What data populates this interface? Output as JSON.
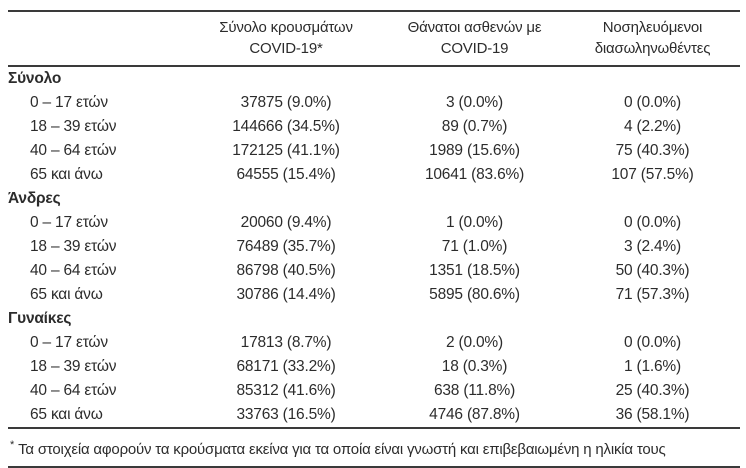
{
  "colors": {
    "text": "#2c2c2c",
    "border": "#3a3a3a",
    "background": "#ffffff"
  },
  "chart_data": {
    "type": "table",
    "header": {
      "col2": {
        "line1": "Σύνολο κρουσμάτων",
        "line2": "COVID-19*"
      },
      "col3": {
        "line1": "Θάνατοι ασθενών με",
        "line2": "COVID-19"
      },
      "col4": {
        "line1": "Νοσηλευόμενοι",
        "line2": "διασωληνωθέντες"
      }
    },
    "sections": [
      {
        "title": "Σύνολο",
        "rows": [
          {
            "age": "0 – 17 ετών",
            "cases": "37875 (9.0%)",
            "deaths": "3 (0.0%)",
            "intubated": "0 (0.0%)"
          },
          {
            "age": "18 – 39 ετών",
            "cases": "144666 (34.5%)",
            "deaths": "89 (0.7%)",
            "intubated": "4 (2.2%)"
          },
          {
            "age": "40 – 64 ετών",
            "cases": "172125 (41.1%)",
            "deaths": "1989 (15.6%)",
            "intubated": "75 (40.3%)"
          },
          {
            "age": "65 και άνω",
            "cases": "64555 (15.4%)",
            "deaths": "10641 (83.6%)",
            "intubated": "107 (57.5%)"
          }
        ]
      },
      {
        "title": "Άνδρες",
        "rows": [
          {
            "age": "0 – 17 ετών",
            "cases": "20060 (9.4%)",
            "deaths": "1 (0.0%)",
            "intubated": "0 (0.0%)"
          },
          {
            "age": "18 – 39 ετών",
            "cases": "76489 (35.7%)",
            "deaths": "71 (1.0%)",
            "intubated": "3 (2.4%)"
          },
          {
            "age": "40 – 64 ετών",
            "cases": "86798 (40.5%)",
            "deaths": "1351 (18.5%)",
            "intubated": "50 (40.3%)"
          },
          {
            "age": "65 και άνω",
            "cases": "30786 (14.4%)",
            "deaths": "5895 (80.6%)",
            "intubated": "71 (57.3%)"
          }
        ]
      },
      {
        "title": "Γυναίκες",
        "rows": [
          {
            "age": "0 – 17 ετών",
            "cases": "17813 (8.7%)",
            "deaths": "2 (0.0%)",
            "intubated": "0 (0.0%)"
          },
          {
            "age": "18 – 39 ετών",
            "cases": "68171 (33.2%)",
            "deaths": "18 (0.3%)",
            "intubated": "1 (1.6%)"
          },
          {
            "age": "40 – 64 ετών",
            "cases": "85312 (41.6%)",
            "deaths": "638 (11.8%)",
            "intubated": "25 (40.3%)"
          },
          {
            "age": "65 και άνω",
            "cases": "33763 (16.5%)",
            "deaths": "4746 (87.8%)",
            "intubated": "36 (58.1%)"
          }
        ]
      }
    ],
    "footnote_marker": "*",
    "footnote_text": "Τα στοιχεία αφορούν τα κρούσματα εκείνα για τα οποία είναι γνωστή και επιβεβαιωμένη η ηλικία τους"
  }
}
